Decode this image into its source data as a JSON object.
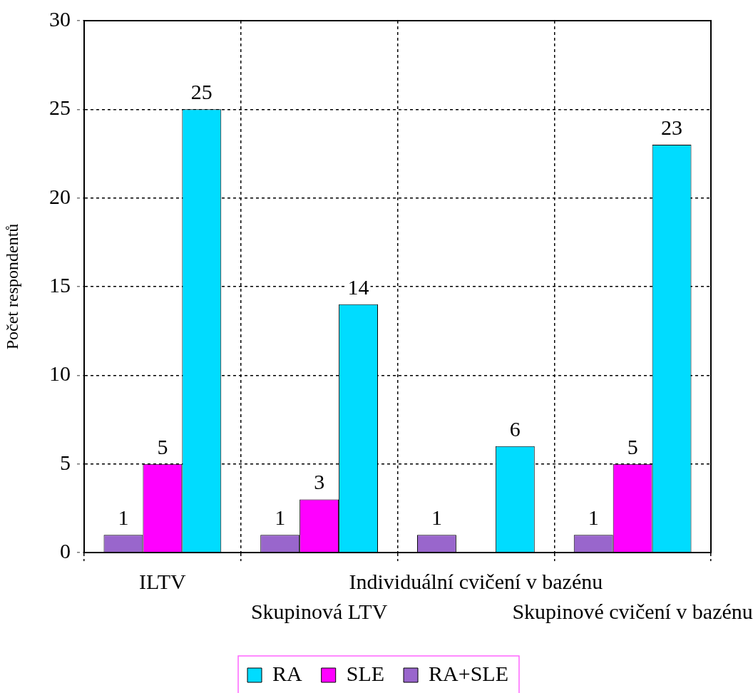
{
  "chart_data": {
    "type": "bar",
    "ylabel": "Počet respondentů",
    "categories": [
      "ILTV",
      "Skupinová LTV",
      "Individuální cvičení v bazénu",
      "Skupinové cvičení v bazénu"
    ],
    "series": [
      {
        "name": "RA+SLE",
        "color": "#9966cc",
        "values": [
          1,
          1,
          1,
          1
        ]
      },
      {
        "name": "SLE",
        "color": "#ff00ff",
        "values": [
          5,
          3,
          null,
          5
        ]
      },
      {
        "name": "RA",
        "color": "#00dcff",
        "values": [
          25,
          14,
          6,
          23
        ]
      }
    ],
    "ylim": [
      0,
      30
    ],
    "yticks": [
      0,
      5,
      10,
      15,
      20,
      25,
      30
    ],
    "grid": true,
    "legend": "bottom",
    "data_labels": true
  }
}
